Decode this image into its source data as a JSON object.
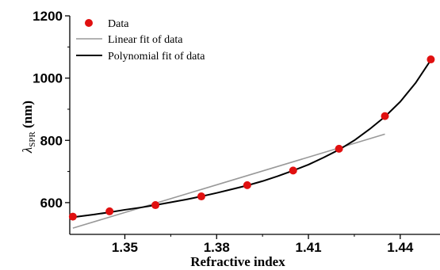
{
  "chart_data": {
    "type": "scatter",
    "xlabel": "Refractive index",
    "ylabel_main": "λ",
    "ylabel_sub": "SPR",
    "ylabel_unit": " (nm)",
    "xlim": [
      1.332,
      1.453
    ],
    "ylim": [
      498,
      1200
    ],
    "x_ticks": [
      1.35,
      1.38,
      1.41,
      1.44
    ],
    "x_tick_labels": [
      "1.35",
      "1.38",
      "1.41",
      "1.44"
    ],
    "y_ticks": [
      600,
      800,
      1000,
      1200
    ],
    "y_tick_labels": [
      "600",
      "800",
      "1000",
      "1200"
    ],
    "series": [
      {
        "name": "Data",
        "kind": "points",
        "color": "#e01010",
        "x": [
          1.333,
          1.345,
          1.36,
          1.375,
          1.39,
          1.405,
          1.42,
          1.435,
          1.45
        ],
        "y": [
          555,
          572,
          592,
          620,
          656,
          703,
          773,
          878,
          1060
        ]
      },
      {
        "name": "Linear fit of data",
        "kind": "line",
        "color": "#999999",
        "x": [
          1.333,
          1.435
        ],
        "y": [
          518,
          820
        ]
      },
      {
        "name": "Polynomial fit of data",
        "kind": "line",
        "color": "#000000",
        "x": [
          1.333,
          1.34,
          1.345,
          1.35,
          1.355,
          1.36,
          1.365,
          1.37,
          1.375,
          1.38,
          1.385,
          1.39,
          1.395,
          1.4,
          1.405,
          1.41,
          1.415,
          1.42,
          1.425,
          1.43,
          1.435,
          1.44,
          1.445,
          1.45
        ],
        "y": [
          553,
          562,
          569,
          577,
          584,
          592,
          601,
          610,
          620,
          631,
          643,
          655,
          669,
          685,
          703,
          722,
          745,
          770,
          800,
          836,
          876,
          924,
          984,
          1058
        ]
      }
    ],
    "legend_position": "top-left",
    "grid": false
  }
}
